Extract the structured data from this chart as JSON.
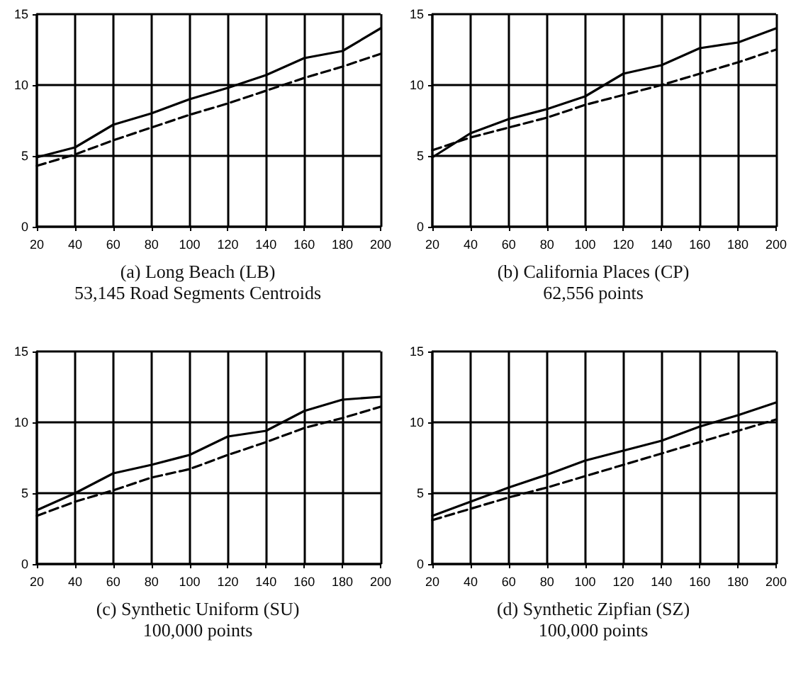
{
  "chart_data": [
    {
      "type": "line",
      "title": "(a) Long Beach (LB)",
      "subtitle": "53,145 Road Segments Centroids",
      "x": [
        20,
        40,
        60,
        80,
        100,
        120,
        140,
        160,
        180,
        200
      ],
      "xlim": [
        20,
        200
      ],
      "xticks": [
        20,
        40,
        60,
        80,
        100,
        120,
        140,
        160,
        180,
        200
      ],
      "ylim": [
        0,
        15
      ],
      "yticks": [
        0,
        5,
        10,
        15
      ],
      "grid": true,
      "marker": "none",
      "series": [
        {
          "color": "#000000",
          "line_style": "solid",
          "values": [
            4.9,
            5.6,
            7.2,
            8.0,
            9.0,
            9.8,
            10.7,
            11.9,
            12.4,
            14.0
          ]
        },
        {
          "color": "#000000",
          "line_style": "dashed",
          "values": [
            4.3,
            5.1,
            6.1,
            7.0,
            7.9,
            8.7,
            9.6,
            10.5,
            11.3,
            12.2
          ]
        }
      ]
    },
    {
      "type": "line",
      "title": "(b) California Places (CP)",
      "subtitle": "62,556 points",
      "x": [
        20,
        40,
        60,
        80,
        100,
        120,
        140,
        160,
        180,
        200
      ],
      "xlim": [
        20,
        200
      ],
      "xticks": [
        20,
        40,
        60,
        80,
        100,
        120,
        140,
        160,
        180,
        200
      ],
      "ylim": [
        0,
        15
      ],
      "yticks": [
        0,
        5,
        10,
        15
      ],
      "grid": true,
      "marker": "none",
      "series": [
        {
          "color": "#000000",
          "line_style": "solid",
          "values": [
            4.9,
            6.6,
            7.6,
            8.3,
            9.2,
            10.8,
            11.4,
            12.6,
            13.0,
            14.0
          ]
        },
        {
          "color": "#000000",
          "line_style": "dashed",
          "values": [
            5.4,
            6.3,
            7.0,
            7.7,
            8.6,
            9.3,
            10.0,
            10.8,
            11.6,
            12.5
          ]
        }
      ]
    },
    {
      "type": "line",
      "title": "(c) Synthetic Uniform (SU)",
      "subtitle": "100,000 points",
      "x": [
        20,
        40,
        60,
        80,
        100,
        120,
        140,
        160,
        180,
        200
      ],
      "xlim": [
        20,
        200
      ],
      "xticks": [
        20,
        40,
        60,
        80,
        100,
        120,
        140,
        160,
        180,
        200
      ],
      "ylim": [
        0,
        15
      ],
      "yticks": [
        0,
        5,
        10,
        15
      ],
      "grid": true,
      "marker": "none",
      "series": [
        {
          "color": "#000000",
          "line_style": "solid",
          "values": [
            3.8,
            5.0,
            6.4,
            7.0,
            7.7,
            9.0,
            9.4,
            10.8,
            11.6,
            11.8
          ]
        },
        {
          "color": "#000000",
          "line_style": "dashed",
          "values": [
            3.4,
            4.4,
            5.2,
            6.1,
            6.7,
            7.7,
            8.6,
            9.6,
            10.3,
            11.1
          ]
        }
      ]
    },
    {
      "type": "line",
      "title": "(d) Synthetic Zipfian (SZ)",
      "subtitle": "100,000 points",
      "x": [
        20,
        40,
        60,
        80,
        100,
        120,
        140,
        160,
        180,
        200
      ],
      "xlim": [
        20,
        200
      ],
      "xticks": [
        20,
        40,
        60,
        80,
        100,
        120,
        140,
        160,
        180,
        200
      ],
      "ylim": [
        0,
        15
      ],
      "yticks": [
        0,
        5,
        10,
        15
      ],
      "grid": true,
      "marker": "none",
      "series": [
        {
          "color": "#000000",
          "line_style": "solid",
          "values": [
            3.4,
            4.4,
            5.4,
            6.3,
            7.3,
            8.0,
            8.7,
            9.7,
            10.5,
            11.4
          ]
        },
        {
          "color": "#000000",
          "line_style": "dashed",
          "values": [
            3.1,
            3.9,
            4.7,
            5.4,
            6.2,
            7.0,
            7.8,
            8.6,
            9.4,
            10.2
          ]
        }
      ]
    }
  ]
}
